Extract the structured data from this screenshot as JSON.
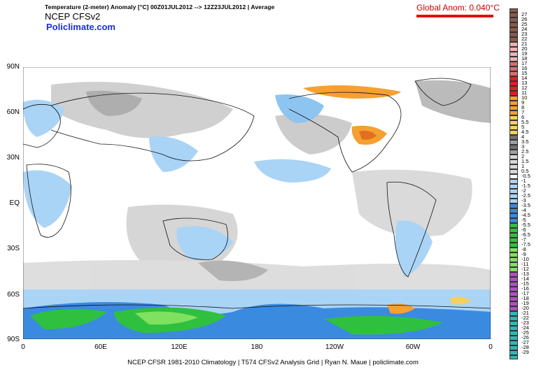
{
  "header": {
    "title": "Temperature (2-meter) Anomaly  [°C] 00Z01JUL2012 --> 12Z23JUL2012 | Average",
    "model": "NCEP  CFSv2",
    "brand": "Policlimate.com"
  },
  "global_anomaly": "Global Anom: 0.040°C",
  "map": {
    "lat_labels": [
      "90N",
      "60N",
      "30N",
      "EQ",
      "30S",
      "60S",
      "90S"
    ],
    "lon_labels": [
      "0",
      "60E",
      "120E",
      "180",
      "120W",
      "60W",
      "0"
    ]
  },
  "footer": "NCEP CFSR 1981-2010 Climatology | T574 CFSv2 Analysis Grid | Ryan N. Maue | policlimate.com",
  "colorbar": {
    "labels": [
      "27",
      "26",
      "25",
      "24",
      "23",
      "22",
      "21",
      "20",
      "19",
      "18",
      "17",
      "16",
      "15",
      "14",
      "13",
      "12",
      "11",
      "10",
      "9",
      "8",
      "7",
      "6",
      "5.5",
      "5",
      "4.5",
      "4",
      "3.5",
      "3",
      "2.5",
      "2",
      "1.5",
      "1",
      "0.5",
      "-0.5",
      "-1",
      "-1.5",
      "-2",
      "-2.5",
      "-3",
      "-3.5",
      "-4",
      "-4.5",
      "-5",
      "-5.5",
      "-6",
      "-6.5",
      "-7",
      "-7.5",
      "-8",
      "-9",
      "-10",
      "-11",
      "-12",
      "-13",
      "-14",
      "-15",
      "-16",
      "-17",
      "-18",
      "-19",
      "-20",
      "-21",
      "-22",
      "-23",
      "-24",
      "-25",
      "-26",
      "-27",
      "-28",
      "-29"
    ],
    "colors": {
      "hot_top": "#8a5a4a",
      "pink": "#f0b0b0",
      "red": "#e02020",
      "orange": "#f5a030",
      "yellow": "#f5d060",
      "gray_dark": "#707070",
      "gray_light": "#d8d8d8",
      "white": "#ffffff",
      "blue_light": "#aad4f5",
      "blue": "#3a8ae0",
      "green": "#30c040",
      "green_light": "#80e060",
      "purple": "#b050c0",
      "teal": "#30b8b8"
    }
  }
}
